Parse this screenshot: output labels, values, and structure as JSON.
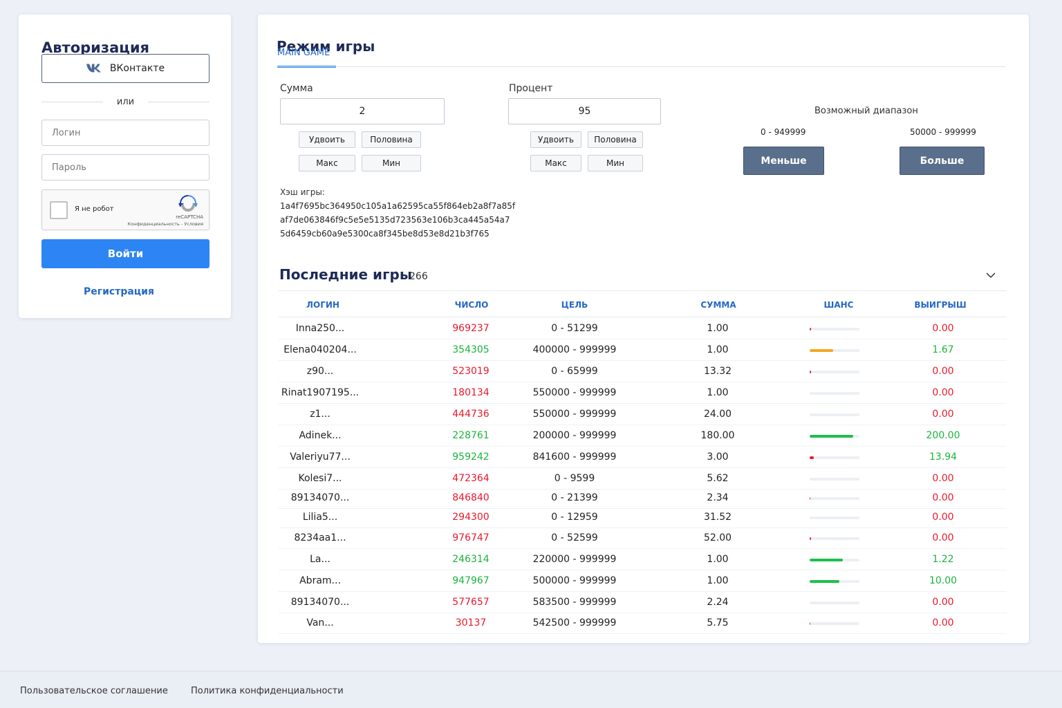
{
  "auth": {
    "title": "Авторизация",
    "vk_label": "ВКонтакте",
    "or_label": "или",
    "login_placeholder": "Логин",
    "password_placeholder": "Пароль",
    "captcha_label": "Я не робот",
    "captcha_brand": "reCAPTCHA",
    "captcha_links": "Конфиденциальность - Условия",
    "login_button": "Войти",
    "register_link": "Регистрация"
  },
  "game": {
    "title": "Режим игры",
    "tab": "MAIN GAME",
    "sum": {
      "label": "Сумма",
      "value": "2",
      "double": "Удвоить",
      "half": "Половина",
      "max": "Макс",
      "min": "Мин"
    },
    "percent": {
      "label": "Процент",
      "value": "95",
      "double": "Удвоить",
      "half": "Половина",
      "max": "Макс",
      "min": "Мин"
    },
    "range": {
      "title": "Возможный диапазон",
      "low": "0 - 949999",
      "high": "50000 - 999999",
      "less_button": "Меньше",
      "more_button": "Больше"
    },
    "hash": {
      "label": "Хэш игры:",
      "lines": [
        "1a4f7695bc364950c105a1a62595ca55f864eb2a8f7a85f",
        "af7de063846f9c5e5e5135d723563e106b3ca445a54a7",
        "5d6459cb60a9e5300ca8f345be8d53e8d21b3f765"
      ]
    }
  },
  "recent": {
    "title": "Последние  игры",
    "count": "266",
    "columns": [
      "ЛОГИН",
      "ЧИСЛО",
      "ЦЕЛЬ",
      "СУММА",
      "ШАНС",
      "ВЫИГРЫШ"
    ],
    "rows": [
      {
        "login": "Inna250...",
        "number": "969237",
        "target": "0 - 51299",
        "sum": "1.00",
        "chance": 0.03,
        "win": "0.00",
        "result": "loss"
      },
      {
        "login": "Elena040204...",
        "number": "354305",
        "target": "400000 - 999999",
        "sum": "1.00",
        "chance": 0.47,
        "win": "1.67",
        "result": "win"
      },
      {
        "login": "z90...",
        "number": "523019",
        "target": "0 - 65999",
        "sum": "13.32",
        "chance": 0.03,
        "win": "0.00",
        "result": "loss"
      },
      {
        "login": "Rinat1907195...",
        "number": "180134",
        "target": "550000 - 999999",
        "sum": "1.00",
        "chance": 0,
        "win": "0.00",
        "result": "loss"
      },
      {
        "login": "z1...",
        "number": "444736",
        "target": "550000 - 999999",
        "sum": "24.00",
        "chance": 0,
        "win": "0.00",
        "result": "loss"
      },
      {
        "login": "Adinek...",
        "number": "228761",
        "target": "200000 - 999999",
        "sum": "180.00",
        "chance": 0.88,
        "win": "200.00",
        "result": "win"
      },
      {
        "login": "Valeriyu77...",
        "number": "959242",
        "target": "841600 - 999999",
        "sum": "3.00",
        "chance": 0.08,
        "win": "13.94",
        "result": "win"
      },
      {
        "login": "Kolesi7...",
        "number": "472364",
        "target": "0 - 9599",
        "sum": "5.62",
        "chance": 0,
        "win": "0.00",
        "result": "loss"
      },
      {
        "login": "89134070...",
        "number": "846840",
        "target": "0 - 21399",
        "sum": "2.34",
        "chance": 0.02,
        "win": "0.00",
        "result": "loss"
      },
      {
        "login": "Lilia5...",
        "number": "294300",
        "target": "0 - 12959",
        "sum": "31.52",
        "chance": 0,
        "win": "0.00",
        "result": "loss"
      },
      {
        "login": "8234aa1...",
        "number": "976747",
        "target": "0 - 52599",
        "sum": "52.00",
        "chance": 0.03,
        "win": "0.00",
        "result": "loss"
      },
      {
        "login": "La...",
        "number": "246314",
        "target": "220000 - 999999",
        "sum": "1.00",
        "chance": 0.67,
        "win": "1.22",
        "result": "win"
      },
      {
        "login": "Abram...",
        "number": "947967",
        "target": "500000 - 999999",
        "sum": "1.00",
        "chance": 0.6,
        "win": "10.00",
        "result": "win"
      },
      {
        "login": "89134070...",
        "number": "577657",
        "target": "583500 - 999999",
        "sum": "2.24",
        "chance": 0,
        "win": "0.00",
        "result": "loss"
      },
      {
        "login": "Van...",
        "number": "30137",
        "target": "542500 - 999999",
        "sum": "5.75",
        "chance": 0.02,
        "win": "0.00",
        "result": "loss"
      }
    ]
  },
  "footer": {
    "terms": "Пользовательское соглашение",
    "privacy": "Политика конфиденциальности"
  },
  "colors": {
    "accent": "#2d85f3",
    "link": "#2468c6",
    "win": "#1bb43c",
    "loss": "#e8192c",
    "bar_green": "#1bc04a",
    "bar_orange": "#f5a623",
    "bar_red": "#e8192c",
    "bet_button": "#5a6f8c"
  },
  "icons": {
    "vk": "vk-logo-icon",
    "recaptcha": "recaptcha-icon",
    "collapse": "chevron-down-icon"
  }
}
